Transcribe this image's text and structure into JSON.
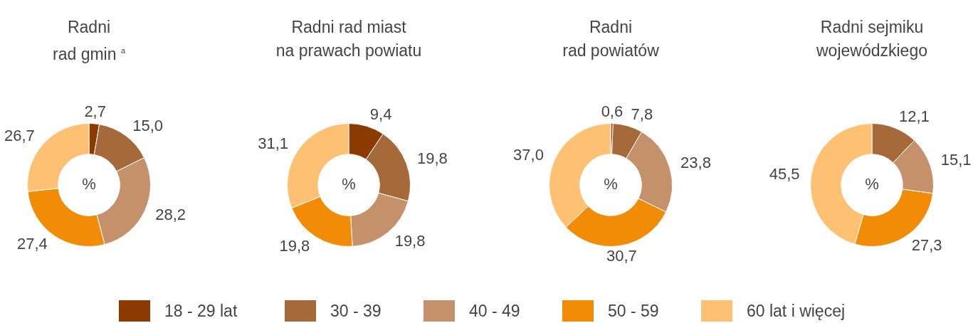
{
  "chart_data": [
    {
      "type": "donut",
      "title": "Radni\nrad gmin $^{a}$",
      "categories": [
        "18 - 29 lat",
        "30 - 39",
        "40 - 49",
        "50 - 59",
        "60 lat i więcej"
      ],
      "values": [
        2.7,
        15.0,
        28.2,
        27.4,
        26.7
      ],
      "value_labels": [
        "2,7",
        "15,0",
        "28,2",
        "27,4",
        "26,7"
      ],
      "colors": [
        "#8b3a00",
        "#a5693a",
        "#c4916a",
        "#f28c06",
        "#fec173"
      ],
      "annotations": [
        "%"
      ],
      "legend": "bottom"
    },
    {
      "type": "donut",
      "title": "Radni rad miast\nna prawach powiatu",
      "categories": [
        null,
        null,
        null,
        null,
        null
      ],
      "values": [
        9.4,
        19.8,
        19.8,
        19.8,
        31.1
      ],
      "value_labels": [
        "9,4",
        "19,8",
        "19,8",
        "19,8",
        "31,1"
      ],
      "colors": [
        "#8b3a00",
        "#a5693a",
        "#c4916a",
        "#f28c06",
        "#fec173"
      ],
      "annotations": [
        "%"
      ]
    },
    {
      "type": "donut",
      "title": "Radni\nrad powiatów",
      "categories": [
        null,
        null,
        null,
        null,
        null
      ],
      "values": [
        0.6,
        7.8,
        23.8,
        30.7,
        37.0
      ],
      "value_labels": [
        "0,6",
        "7,8",
        "23,8",
        "30,7",
        "37,0"
      ],
      "colors": [
        "#8b3a00",
        "#a5693a",
        "#c4916a",
        "#f28c06",
        "#fec173"
      ],
      "annotations": [
        "%"
      ]
    },
    {
      "type": "donut",
      "title": "Radni sejmiku\nwojewódzkiego",
      "categories": [
        null,
        null,
        null,
        null,
        null
      ],
      "values": [
        0,
        12.1,
        15.1,
        27.3,
        45.5
      ],
      "value_labels": [
        null,
        "12,1",
        "15,1",
        "27,3",
        "45,5"
      ],
      "colors": [
        "#8b3a00",
        "#a5693a",
        "#c4916a",
        "#f28c06",
        "#fec173"
      ],
      "annotations": [
        "%"
      ]
    }
  ]
}
